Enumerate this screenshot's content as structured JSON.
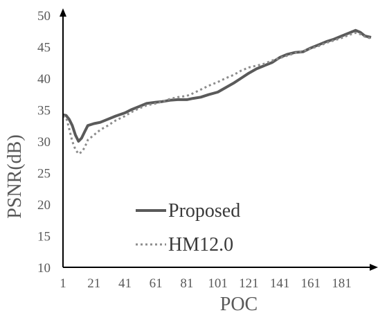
{
  "chart_data": {
    "type": "line",
    "xlabel": "POC",
    "ylabel": "PSNR(dB)",
    "xlim": [
      1,
      200
    ],
    "ylim": [
      10,
      50
    ],
    "x_ticks": [
      "1",
      "21",
      "41",
      "61",
      "81",
      "101",
      "121",
      "141",
      "161",
      "181"
    ],
    "y_ticks": [
      "10",
      "15",
      "20",
      "25",
      "30",
      "35",
      "40",
      "45",
      "50"
    ],
    "legend_position": "lower-left",
    "grid": false,
    "series": [
      {
        "name": "Proposed",
        "style": "solid",
        "color": "#5a5a5a",
        "x": [
          1,
          3,
          5,
          7,
          9,
          11,
          13,
          15,
          17,
          21,
          25,
          30,
          35,
          41,
          45,
          50,
          55,
          61,
          65,
          70,
          75,
          81,
          85,
          90,
          95,
          101,
          106,
          111,
          116,
          121,
          126,
          131,
          136,
          141,
          146,
          151,
          156,
          161,
          166,
          171,
          176,
          181,
          186,
          190,
          193,
          196,
          200
        ],
        "y": [
          34.2,
          34.1,
          33.5,
          32.5,
          31.0,
          30.0,
          30.5,
          31.5,
          32.5,
          32.8,
          33.0,
          33.5,
          34.0,
          34.5,
          35.0,
          35.5,
          36.0,
          36.2,
          36.3,
          36.5,
          36.6,
          36.6,
          36.8,
          37.0,
          37.4,
          37.8,
          38.5,
          39.2,
          40.0,
          40.8,
          41.5,
          42.0,
          42.5,
          43.3,
          43.8,
          44.1,
          44.2,
          44.8,
          45.3,
          45.8,
          46.2,
          46.7,
          47.2,
          47.6,
          47.3,
          46.7,
          46.5
        ]
      },
      {
        "name": "HM12.0",
        "style": "dotted",
        "color": "#8c8c8c",
        "x": [
          1,
          3,
          5,
          7,
          9,
          11,
          13,
          15,
          17,
          21,
          25,
          30,
          35,
          41,
          45,
          50,
          55,
          61,
          65,
          70,
          75,
          81,
          85,
          90,
          95,
          101,
          106,
          111,
          116,
          121,
          126,
          131,
          136,
          141,
          146,
          151,
          156,
          161,
          166,
          171,
          176,
          181,
          186,
          190,
          193,
          196,
          200
        ],
        "y": [
          34.0,
          33.8,
          32.0,
          30.0,
          28.7,
          28.0,
          28.3,
          29.0,
          30.2,
          31.0,
          31.8,
          32.5,
          33.3,
          34.0,
          34.6,
          35.2,
          35.7,
          36.0,
          36.3,
          36.7,
          37.0,
          37.2,
          37.6,
          38.2,
          38.8,
          39.4,
          40.0,
          40.5,
          41.2,
          41.7,
          42.0,
          42.3,
          42.8,
          43.2,
          43.6,
          44.0,
          44.3,
          44.7,
          45.1,
          45.6,
          46.0,
          46.4,
          46.9,
          47.2,
          47.0,
          46.6,
          46.3
        ]
      }
    ]
  }
}
